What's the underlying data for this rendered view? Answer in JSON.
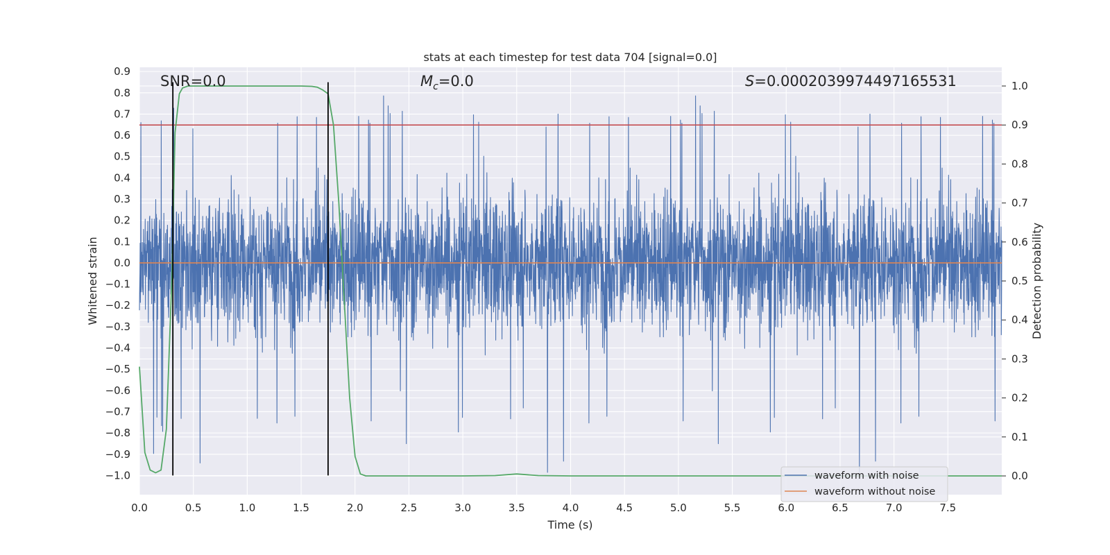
{
  "chart_data": {
    "type": "line",
    "title": "stats at each timestep for test data 704 [signal=0.0]",
    "xlabel": "Time (s)",
    "ylabel": "Whitened strain",
    "y2label": "Detection probability",
    "xlim": [
      0.0,
      8.0
    ],
    "ylim": [
      -1.09,
      0.92
    ],
    "y2lim": [
      -0.048,
      1.048
    ],
    "x_ticks": [
      "0.0",
      "0.5",
      "1.0",
      "1.5",
      "2.0",
      "2.5",
      "3.0",
      "3.5",
      "4.0",
      "4.5",
      "5.0",
      "5.5",
      "6.0",
      "6.5",
      "7.0",
      "7.5"
    ],
    "y_ticks": [
      "0.9",
      "0.8",
      "0.7",
      "0.6",
      "0.5",
      "0.4",
      "0.3",
      "0.2",
      "0.1",
      "0.0",
      "−0.1",
      "−0.2",
      "−0.3",
      "−0.4",
      "−0.5",
      "−0.6",
      "−0.7",
      "−0.8",
      "−0.9",
      "−1.0"
    ],
    "y2_ticks": [
      "1.0",
      "0.9",
      "0.8",
      "0.7",
      "0.6",
      "0.5",
      "0.4",
      "0.3",
      "0.2",
      "0.1",
      "0.0"
    ],
    "grid": true,
    "annotations": {
      "snr": "SNR=0.0",
      "mc_symbol": "M",
      "mc_sub": "c",
      "mc_value": "=0.0",
      "s_symbol": "S",
      "s_value": "=0.0002039974497165531"
    },
    "legend": {
      "placement": "lower-right",
      "entries": [
        "waveform with noise",
        "waveform without noise"
      ]
    },
    "series": [
      {
        "name": "waveform with noise",
        "color": "#4c72b0",
        "noise_envelope": {
          "typical_abs": 0.3,
          "peaks_pos": [
            0.7,
            0.77,
            0.85,
            0.84,
            0.75,
            0.76,
            0.74
          ],
          "peaks_neg": [
            -0.7,
            -0.79,
            -1.0,
            -0.84,
            -0.77,
            -0.77
          ]
        }
      },
      {
        "name": "waveform without noise",
        "color": "#dd8452",
        "x": [
          0.0,
          8.0
        ],
        "values": [
          0.0,
          0.0
        ]
      },
      {
        "name": "detection probability",
        "axis": "right",
        "color": "#55a868",
        "x": [
          0.0,
          0.05,
          0.1,
          0.15,
          0.2,
          0.25,
          0.3,
          0.33,
          0.37,
          0.4,
          0.45,
          0.5,
          1.0,
          1.5,
          1.6,
          1.65,
          1.7,
          1.75,
          1.8,
          1.85,
          1.9,
          1.95,
          2.0,
          2.05,
          2.1,
          2.2,
          3.0,
          3.3,
          3.5,
          3.7,
          4.0,
          8.0
        ],
        "values": [
          0.28,
          0.06,
          0.015,
          0.008,
          0.015,
          0.12,
          0.5,
          0.88,
          0.98,
          0.995,
          1.0,
          1.0,
          1.0,
          1.0,
          0.999,
          0.997,
          0.99,
          0.98,
          0.9,
          0.7,
          0.45,
          0.2,
          0.05,
          0.005,
          0.0,
          0.0,
          0.0,
          0.001,
          0.005,
          0.001,
          0.0,
          0.0
        ]
      }
    ],
    "threshold_line": {
      "axis": "right",
      "value": 0.9,
      "color": "#c44e52"
    },
    "vertical_markers": {
      "x": [
        0.31,
        1.75
      ],
      "ymin": -1.0,
      "ymax": 0.85,
      "color": "#000000"
    }
  }
}
